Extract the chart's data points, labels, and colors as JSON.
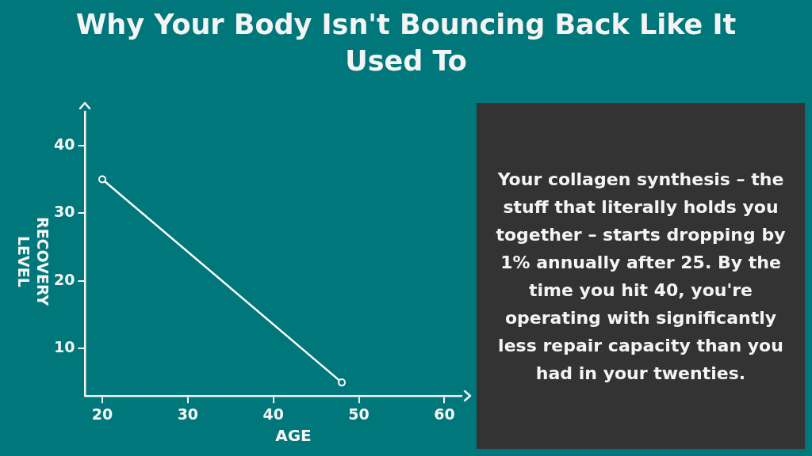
{
  "chart_data": {
    "type": "line",
    "title": "Why Your Body Isn't Bouncing Back Like It Used To",
    "xlabel": "AGE",
    "ylabel": "RECOVERY LEVEL",
    "x": [
      20,
      48
    ],
    "values": [
      35,
      5
    ],
    "color": "#ffffff",
    "xlim": [
      18,
      62
    ],
    "xticks": [
      20,
      30,
      40,
      50,
      60
    ],
    "ylim": [
      3,
      45
    ],
    "yticks": [
      10,
      20,
      30,
      40
    ],
    "grid": false,
    "legend": false,
    "marker": "circle",
    "line_style": "solid",
    "annotations": [
      "Your collagen synthesis – the stuff that literally holds you together – starts dropping by 1% annually after 25. By the time you hit 40, you're operating with significantly less repair capacity than you had in your twenties."
    ]
  }
}
